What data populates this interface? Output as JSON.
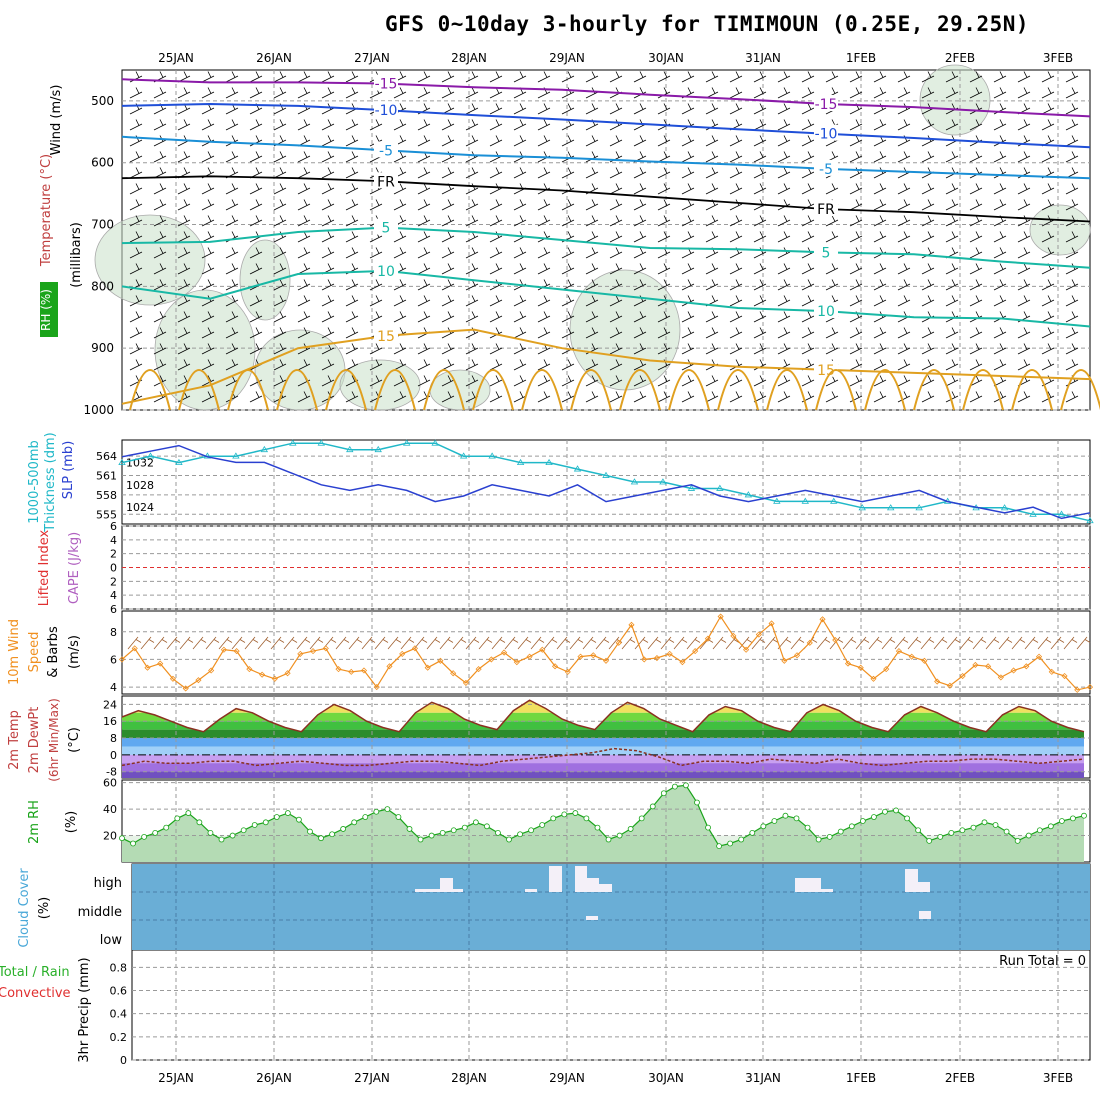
{
  "title": "GFS 0~10day 3-hourly for TIMIMOUN (0.25E, 29.25N)",
  "colors": {
    "grid": "#9a9a9a",
    "purple": "#8a1aa8",
    "blue": "#1f4fd8",
    "lightblue": "#1a8fd6",
    "teal": "#18b8a5",
    "orange": "#e0a020",
    "darkorange": "#d86a10",
    "slp": "#2a40d0",
    "thickness": "#20b8c8",
    "wind10m": "#f09020",
    "rh": "#1aa41a",
    "cloud": "#6aaed6",
    "red": "#e03030"
  },
  "chart_data": [
    {
      "panel": "upper-air",
      "type": "contour",
      "x": [
        "25JAN",
        "26JAN",
        "27JAN",
        "28JAN",
        "29JAN",
        "30JAN",
        "31JAN",
        "1FEB",
        "2FEB",
        "3FEB"
      ],
      "ylabel_parts": [
        "Wind (m/s)",
        "Temperature (°C)",
        "RH (%)",
        "(millibars)"
      ],
      "yticks": [
        500,
        600,
        700,
        800,
        900,
        1000
      ],
      "ylim": [
        1000,
        450
      ],
      "contours": [
        {
          "label": "-15",
          "level": -15,
          "pressure": [
            465,
            470,
            470,
            472,
            478,
            482,
            490,
            497,
            505,
            510,
            518,
            525
          ]
        },
        {
          "label": "-10",
          "level": -10,
          "pressure": [
            508,
            505,
            508,
            515,
            523,
            530,
            538,
            546,
            553,
            560,
            568,
            575
          ]
        },
        {
          "label": "-5",
          "level": -5,
          "pressure": [
            558,
            566,
            572,
            580,
            588,
            592,
            598,
            603,
            610,
            615,
            620,
            625
          ]
        },
        {
          "label": "FR",
          "level": 0,
          "pressure": [
            625,
            622,
            625,
            630,
            638,
            645,
            655,
            665,
            675,
            680,
            688,
            695
          ]
        },
        {
          "label": "5",
          "level": 5,
          "pressure": [
            730,
            728,
            712,
            705,
            712,
            725,
            738,
            740,
            745,
            748,
            760,
            770
          ]
        },
        {
          "label": "10",
          "level": 10,
          "pressure": [
            800,
            820,
            780,
            775,
            790,
            805,
            820,
            835,
            840,
            850,
            852,
            865
          ]
        },
        {
          "label": "15",
          "level": 15,
          "pressure": [
            990,
            960,
            900,
            880,
            870,
            900,
            920,
            930,
            935,
            940,
            945,
            950
          ]
        }
      ]
    },
    {
      "panel": "slp-thickness",
      "type": "line",
      "ylabel_parts": [
        "1000-500mb",
        "Thickness (dm)",
        "SLP (mb)"
      ],
      "yticks_left": [
        555,
        558,
        561,
        564
      ],
      "yticks_right": [
        1024,
        1028,
        1032
      ],
      "series": [
        {
          "name": "SLP",
          "values": [
            1033,
            1034,
            1035,
            1033,
            1032,
            1032,
            1030,
            1028,
            1027,
            1028,
            1027,
            1025,
            1026,
            1028,
            1027,
            1026,
            1028,
            1025,
            1026,
            1027,
            1028,
            1026,
            1025,
            1026,
            1027,
            1026,
            1025,
            1026,
            1027,
            1025,
            1024,
            1023,
            1024,
            1022,
            1023
          ]
        },
        {
          "name": "Thickness",
          "values": [
            563,
            564,
            563,
            564,
            564,
            565,
            566,
            566,
            565,
            565,
            566,
            566,
            564,
            564,
            563,
            563,
            562,
            561,
            560,
            560,
            559,
            559,
            558,
            557,
            557,
            557,
            556,
            556,
            556,
            557,
            556,
            556,
            555,
            555,
            554
          ]
        }
      ]
    },
    {
      "panel": "stability",
      "type": "line",
      "ylabel_parts": [
        "Lifted Index",
        "CAPE (J/kg)"
      ],
      "yticks": [
        6,
        4,
        2,
        0,
        2,
        4,
        6
      ],
      "ylim": [
        -6,
        6
      ]
    },
    {
      "panel": "wind10m",
      "type": "line",
      "ylabel_parts": [
        "10m Wind",
        "Speed",
        "& Barbs",
        "(m/s)"
      ],
      "yticks": [
        4,
        6,
        8
      ],
      "ylim": [
        3.5,
        9.5
      ],
      "series": [
        {
          "name": "10m Wind Speed",
          "values": [
            6.0,
            6.8,
            5.4,
            5.7,
            4.6,
            3.9,
            4.5,
            5.2,
            6.7,
            6.6,
            5.3,
            4.9,
            4.6,
            5.0,
            6.4,
            6.6,
            6.8,
            5.3,
            5.1,
            5.2,
            4.0,
            5.5,
            6.4,
            6.8,
            5.4,
            5.9,
            5.0,
            4.3,
            5.3,
            6.0,
            6.5,
            5.8,
            6.2,
            6.7,
            5.5,
            5.1,
            6.2,
            6.3,
            5.9,
            7.2,
            8.5,
            6.0,
            6.1,
            6.4,
            5.8,
            6.6,
            7.5,
            9.1,
            7.7,
            6.7,
            7.8,
            8.6,
            5.9,
            6.3,
            7.2,
            8.9,
            7.4,
            5.7,
            5.4,
            4.6,
            5.3,
            6.6,
            6.2,
            5.9,
            4.4,
            4.1,
            4.8,
            5.6,
            5.5,
            4.7,
            5.2,
            5.5,
            6.2,
            5.1,
            4.8,
            3.8,
            4.0
          ]
        }
      ]
    },
    {
      "panel": "temperature",
      "type": "area",
      "ylabel_parts": [
        "2m Temp",
        "2m DewPt",
        "(6hr Min/Max)",
        "(°C)"
      ],
      "yticks": [
        24,
        16,
        8,
        0,
        -8
      ],
      "ylim": [
        -11,
        28
      ],
      "series": [
        {
          "name": "2m Temp",
          "values": [
            18,
            21,
            19,
            16,
            13,
            11,
            17,
            22,
            20,
            16,
            13,
            11,
            19,
            24,
            21,
            16,
            13,
            11,
            20,
            25,
            22,
            17,
            14,
            12,
            21,
            26,
            22,
            17,
            14,
            12,
            20,
            25,
            22,
            17,
            14,
            11,
            19,
            23,
            21,
            16,
            13,
            11,
            20,
            24,
            21,
            16,
            13,
            11,
            19,
            23,
            20,
            16,
            13,
            11,
            19,
            23,
            21,
            16,
            13,
            11
          ]
        },
        {
          "name": "2m DewPt",
          "values": [
            -5,
            -3,
            -4,
            -4,
            -3,
            -3,
            -5,
            -4,
            -3,
            -4,
            -5,
            -5,
            -4,
            -3,
            -3,
            -4,
            -5,
            -3,
            -2,
            -1,
            0,
            1,
            3,
            2,
            -1,
            -5,
            -3,
            -3,
            -4,
            -2,
            -3,
            -4,
            -2,
            -4,
            -5,
            -4,
            -3,
            -3,
            -2,
            -2,
            -3,
            -4,
            -3,
            -2
          ]
        }
      ]
    },
    {
      "panel": "rh",
      "type": "area",
      "ylabel_parts": [
        "2m RH",
        "(%)"
      ],
      "yticks": [
        20,
        40,
        60
      ],
      "ylim": [
        0,
        62
      ],
      "series": [
        {
          "name": "2m RH",
          "values": [
            18,
            14,
            19,
            22,
            26,
            33,
            37,
            30,
            22,
            17,
            20,
            24,
            28,
            30,
            34,
            37,
            32,
            23,
            18,
            21,
            25,
            30,
            34,
            38,
            40,
            34,
            25,
            17,
            20,
            22,
            24,
            26,
            30,
            27,
            22,
            17,
            21,
            24,
            28,
            33,
            36,
            37,
            33,
            26,
            17,
            20,
            25,
            33,
            42,
            52,
            57,
            58,
            45,
            26,
            12,
            14,
            17,
            22,
            27,
            31,
            35,
            33,
            26,
            17,
            19,
            23,
            27,
            31,
            34,
            38,
            39,
            33,
            24,
            16,
            19,
            22,
            24,
            26,
            30,
            28,
            23,
            16,
            20,
            24,
            27,
            31,
            33,
            35
          ]
        }
      ]
    },
    {
      "panel": "cloud",
      "type": "bar",
      "ylabel_parts": [
        "Cloud Cover",
        "(%)"
      ],
      "levels": [
        "high",
        "middle",
        "low"
      ]
    },
    {
      "panel": "precip",
      "type": "bar",
      "ylabel_parts": [
        "Total / Rain",
        "Convective",
        "3hr Precip (mm)"
      ],
      "yticks": [
        0,
        0.2,
        0.4,
        0.6,
        0.8
      ],
      "ylim": [
        0,
        0.95
      ],
      "run_total": "Run Total = 0"
    }
  ]
}
